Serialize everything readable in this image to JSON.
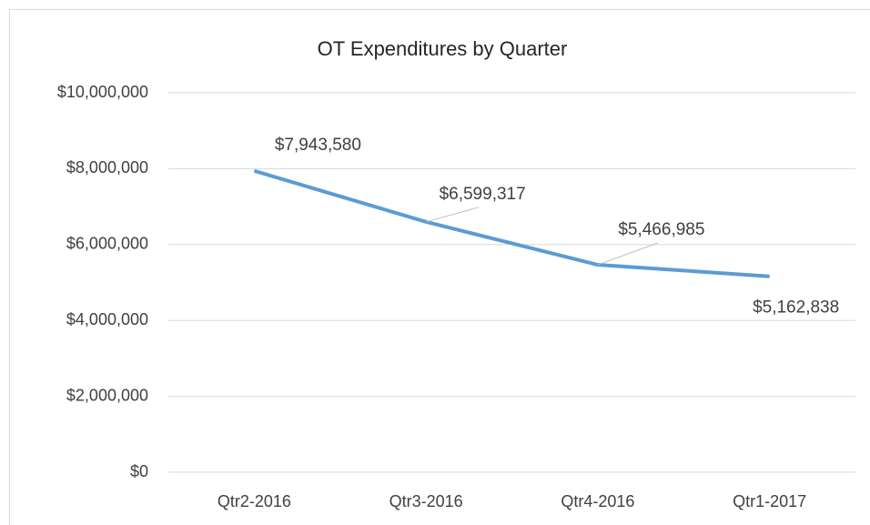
{
  "chart_data": {
    "type": "line",
    "title": "OT Expenditures by Quarter",
    "categories": [
      "Qtr2-2016",
      "Qtr3-2016",
      "Qtr4-2016",
      "Qtr1-2017"
    ],
    "series": [
      {
        "name": "OT Expenditures",
        "color": "#5b9bd5",
        "values": [
          7943580,
          6599317,
          5466985,
          5162838
        ],
        "value_labels": [
          "$7,943,580",
          "$6,599,317",
          "$5,466,985",
          "$5,162,838"
        ]
      }
    ],
    "ylim": [
      0,
      10000000
    ],
    "yticks": [
      {
        "value": 0,
        "label": "$0"
      },
      {
        "value": 2000000,
        "label": "$2,000,000"
      },
      {
        "value": 4000000,
        "label": "$4,000,000"
      },
      {
        "value": 6000000,
        "label": "$6,000,000"
      },
      {
        "value": 8000000,
        "label": "$8,000,000"
      },
      {
        "value": 10000000,
        "label": "$10,000,000"
      }
    ],
    "grid": true
  }
}
